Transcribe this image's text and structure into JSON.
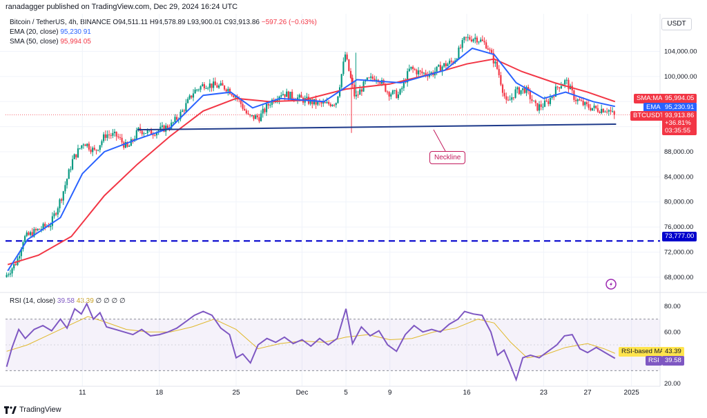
{
  "header": {
    "publisher_line": "ranadagger published on TradingView.com, Dec 29, 2024 16:24 UTC"
  },
  "legend": {
    "symbol": "Bitcoin / TetherUS, 4h, BINANCE",
    "open": "O94,511.11",
    "high": "H94,578.89",
    "low": "L93,900.01",
    "close": "C93,913.86",
    "change": "−597.26 (−0.63%)",
    "ema_label": "EMA (20, close)",
    "ema_value": "95,230.91",
    "sma_label": "SMA (50, close)",
    "sma_value": "95,994.05",
    "rsi_label": "RSI (14, close)",
    "rsi_value": "39.58",
    "rsi_extra": "43.39",
    "rsi_zeros": "∅ ∅ ∅ ∅"
  },
  "currency": "USDT",
  "price_badges": {
    "sma_name": "SMA:MA",
    "sma_value": "95,994.05",
    "ema_name": "EMA",
    "ema_value": "95,230.91",
    "btc_name": "BTCUSDT",
    "btc_value": "93,913.86",
    "btc_pct": "+36.81%",
    "btc_timer": "03:35:55",
    "support": "73,777.00"
  },
  "rsi_badges": {
    "ma_name": "RSI-based MA",
    "ma_value": "43.39",
    "rsi_name": "RSI",
    "rsi_value": "39.58"
  },
  "annotation": {
    "neckline": "Neckline"
  },
  "footer": {
    "brand": "TradingView"
  },
  "colors": {
    "up": "#089981",
    "down": "#f23645",
    "ema": "#2962ff",
    "sma": "#f23645",
    "rsi": "#7e57c2",
    "neckline": "#1e3a8a",
    "support": "#0000cc"
  },
  "chart_data": {
    "type": "candlestick",
    "price_axis": {
      "range": [
        66000,
        110000
      ],
      "ticks": [
        68000,
        72000,
        76000,
        80000,
        84000,
        88000,
        92000,
        96000,
        100000,
        104000
      ],
      "tick_labels": [
        "68,000.00",
        "72,000.00",
        "76,000.00",
        "80,000.00",
        "84,000.00",
        "88,000.00",
        "",
        "",
        "100,000.00",
        "104,000.00"
      ]
    },
    "x_axis": {
      "ticks": [
        {
          "day": 11,
          "label": "11"
        },
        {
          "day": 18,
          "label": "18"
        },
        {
          "day": 25,
          "label": "25"
        },
        {
          "day": 31,
          "label": "Dec"
        },
        {
          "day": 35,
          "label": "5"
        },
        {
          "day": 39,
          "label": "9"
        },
        {
          "day": 46,
          "label": "16"
        },
        {
          "day": 53,
          "label": "23"
        },
        {
          "day": 57,
          "label": "27"
        },
        {
          "day": 61,
          "label": "2025"
        }
      ]
    },
    "x_range_days": [
      4,
      63.6
    ],
    "price_anchors": [
      {
        "day": 4.1,
        "price": 68000
      },
      {
        "day": 5.2,
        "price": 70500
      },
      {
        "day": 5.8,
        "price": 74200
      },
      {
        "day": 7.2,
        "price": 75600
      },
      {
        "day": 8.3,
        "price": 76500
      },
      {
        "day": 9.3,
        "price": 81000
      },
      {
        "day": 10.3,
        "price": 86800
      },
      {
        "day": 11.3,
        "price": 89600
      },
      {
        "day": 12.3,
        "price": 88000
      },
      {
        "day": 13.3,
        "price": 90800
      },
      {
        "day": 14.3,
        "price": 90500
      },
      {
        "day": 15.3,
        "price": 88500
      },
      {
        "day": 16.3,
        "price": 91500
      },
      {
        "day": 17.3,
        "price": 91000
      },
      {
        "day": 18.3,
        "price": 91500
      },
      {
        "day": 19.3,
        "price": 92300
      },
      {
        "day": 20.3,
        "price": 94500
      },
      {
        "day": 21.3,
        "price": 97600
      },
      {
        "day": 22.3,
        "price": 98800
      },
      {
        "day": 23.3,
        "price": 98500
      },
      {
        "day": 24.3,
        "price": 98200
      },
      {
        "day": 25.3,
        "price": 96600
      },
      {
        "day": 26.3,
        "price": 93500
      },
      {
        "day": 27.3,
        "price": 93500
      },
      {
        "day": 28.3,
        "price": 96000
      },
      {
        "day": 29.3,
        "price": 97400
      },
      {
        "day": 30.3,
        "price": 96800
      },
      {
        "day": 31.3,
        "price": 96300
      },
      {
        "day": 32.3,
        "price": 95800
      },
      {
        "day": 33.3,
        "price": 95500
      },
      {
        "day": 34.3,
        "price": 96000
      },
      {
        "day": 35.1,
        "price": 103500
      },
      {
        "day": 36.0,
        "price": 96500
      },
      {
        "day": 37.0,
        "price": 99200
      },
      {
        "day": 38.0,
        "price": 100000
      },
      {
        "day": 39.0,
        "price": 97500
      },
      {
        "day": 40.0,
        "price": 97000
      },
      {
        "day": 41.0,
        "price": 101300
      },
      {
        "day": 42.0,
        "price": 100500
      },
      {
        "day": 43.0,
        "price": 100500
      },
      {
        "day": 44.0,
        "price": 101700
      },
      {
        "day": 45.0,
        "price": 102500
      },
      {
        "day": 46.0,
        "price": 106000
      },
      {
        "day": 47.0,
        "price": 106200
      },
      {
        "day": 48.0,
        "price": 105000
      },
      {
        "day": 49.0,
        "price": 101000
      },
      {
        "day": 49.8,
        "price": 95500
      },
      {
        "day": 50.6,
        "price": 97600
      },
      {
        "day": 51.5,
        "price": 98000
      },
      {
        "day": 52.5,
        "price": 95000
      },
      {
        "day": 53.5,
        "price": 95800
      },
      {
        "day": 54.5,
        "price": 98500
      },
      {
        "day": 55.2,
        "price": 99300
      },
      {
        "day": 56.0,
        "price": 96500
      },
      {
        "day": 57.0,
        "price": 95300
      },
      {
        "day": 58.0,
        "price": 94800
      },
      {
        "day": 59.0,
        "price": 94800
      },
      {
        "day": 59.5,
        "price": 93900
      }
    ],
    "spike_wicks": [
      {
        "day": 35.5,
        "low": 91000
      },
      {
        "day": 35.9,
        "high": 103800
      }
    ],
    "ema_20": [
      [
        4.2,
        69000
      ],
      [
        6,
        74000
      ],
      [
        9,
        77500
      ],
      [
        11,
        84500
      ],
      [
        13,
        88000
      ],
      [
        16,
        90000
      ],
      [
        19,
        91800
      ],
      [
        22,
        97000
      ],
      [
        24.5,
        97500
      ],
      [
        26.5,
        95000
      ],
      [
        29,
        96500
      ],
      [
        33,
        96000
      ],
      [
        36,
        99500
      ],
      [
        40,
        99000
      ],
      [
        44,
        101000
      ],
      [
        46.5,
        104500
      ],
      [
        48.5,
        103500
      ],
      [
        50.5,
        99000
      ],
      [
        53,
        96500
      ],
      [
        55,
        97500
      ],
      [
        57.5,
        96000
      ],
      [
        59.5,
        95230.91
      ]
    ],
    "sma_50": [
      [
        4.2,
        70000
      ],
      [
        7,
        71500
      ],
      [
        10,
        74500
      ],
      [
        13,
        81000
      ],
      [
        16,
        86000
      ],
      [
        19,
        90500
      ],
      [
        22,
        94500
      ],
      [
        25,
        96500
      ],
      [
        28,
        96000
      ],
      [
        31,
        96200
      ],
      [
        35,
        98000
      ],
      [
        39,
        98800
      ],
      [
        43,
        100500
      ],
      [
        46,
        102000
      ],
      [
        48.5,
        102800
      ],
      [
        51,
        100800
      ],
      [
        54,
        99000
      ],
      [
        57,
        97500
      ],
      [
        59.5,
        95994.05
      ]
    ],
    "neckline": [
      [
        16,
        91500
      ],
      [
        59.6,
        92400
      ]
    ],
    "support_line": 73777,
    "rsi": {
      "range": [
        20,
        80
      ],
      "ticks": [
        20,
        40,
        60,
        80
      ],
      "bands": [
        30,
        70
      ],
      "values": [
        [
          4.1,
          33
        ],
        [
          4.6,
          48
        ],
        [
          5.2,
          62
        ],
        [
          5.8,
          55
        ],
        [
          6.6,
          62
        ],
        [
          7.4,
          65
        ],
        [
          8.2,
          61
        ],
        [
          9.0,
          70
        ],
        [
          9.6,
          63
        ],
        [
          10.3,
          78
        ],
        [
          10.9,
          74
        ],
        [
          11.4,
          82
        ],
        [
          12.0,
          70
        ],
        [
          12.6,
          75
        ],
        [
          13.2,
          64
        ],
        [
          14.0,
          62
        ],
        [
          14.8,
          60
        ],
        [
          15.6,
          58
        ],
        [
          16.4,
          62
        ],
        [
          17.2,
          57
        ],
        [
          18.0,
          58
        ],
        [
          18.8,
          60
        ],
        [
          19.6,
          63
        ],
        [
          20.4,
          68
        ],
        [
          21.2,
          73
        ],
        [
          22.0,
          76
        ],
        [
          22.8,
          73
        ],
        [
          23.6,
          63
        ],
        [
          24.4,
          58
        ],
        [
          25.0,
          40
        ],
        [
          25.6,
          43
        ],
        [
          26.3,
          36
        ],
        [
          27.0,
          50
        ],
        [
          27.8,
          55
        ],
        [
          28.6,
          52
        ],
        [
          29.4,
          56
        ],
        [
          30.2,
          51
        ],
        [
          31.0,
          54
        ],
        [
          31.8,
          49
        ],
        [
          32.6,
          55
        ],
        [
          33.4,
          50
        ],
        [
          34.2,
          55
        ],
        [
          35.0,
          78
        ],
        [
          35.6,
          51
        ],
        [
          36.4,
          64
        ],
        [
          37.2,
          57
        ],
        [
          38.0,
          61
        ],
        [
          38.8,
          50
        ],
        [
          39.6,
          45
        ],
        [
          40.4,
          58
        ],
        [
          41.2,
          65
        ],
        [
          42.0,
          60
        ],
        [
          42.8,
          62
        ],
        [
          43.6,
          60
        ],
        [
          44.4,
          66
        ],
        [
          45.2,
          70
        ],
        [
          45.8,
          76
        ],
        [
          46.6,
          74
        ],
        [
          47.4,
          73
        ],
        [
          48.2,
          60
        ],
        [
          48.8,
          42
        ],
        [
          49.4,
          46
        ],
        [
          49.9,
          36
        ],
        [
          50.5,
          23
        ],
        [
          51.1,
          40
        ],
        [
          51.8,
          42
        ],
        [
          52.6,
          40
        ],
        [
          53.4,
          45
        ],
        [
          54.2,
          50
        ],
        [
          54.9,
          57
        ],
        [
          55.6,
          58
        ],
        [
          56.3,
          47
        ],
        [
          57.0,
          44
        ],
        [
          57.8,
          48
        ],
        [
          58.6,
          44
        ],
        [
          59.5,
          39.58
        ]
      ],
      "ma": [
        [
          4.1,
          45
        ],
        [
          6,
          50
        ],
        [
          8,
          58
        ],
        [
          10,
          66
        ],
        [
          11.5,
          72
        ],
        [
          13,
          68
        ],
        [
          15,
          62
        ],
        [
          17,
          60
        ],
        [
          19,
          60
        ],
        [
          21,
          64
        ],
        [
          23,
          70
        ],
        [
          25,
          62
        ],
        [
          27,
          47
        ],
        [
          29,
          51
        ],
        [
          31,
          53
        ],
        [
          33,
          52
        ],
        [
          35,
          56
        ],
        [
          37,
          58
        ],
        [
          39,
          54
        ],
        [
          41,
          55
        ],
        [
          43,
          60
        ],
        [
          45,
          63
        ],
        [
          47,
          70
        ],
        [
          48.5,
          67
        ],
        [
          50,
          52
        ],
        [
          51.5,
          40
        ],
        [
          53,
          42
        ],
        [
          55,
          48
        ],
        [
          57,
          51
        ],
        [
          58.5,
          47
        ],
        [
          59.5,
          43.39
        ]
      ]
    }
  }
}
